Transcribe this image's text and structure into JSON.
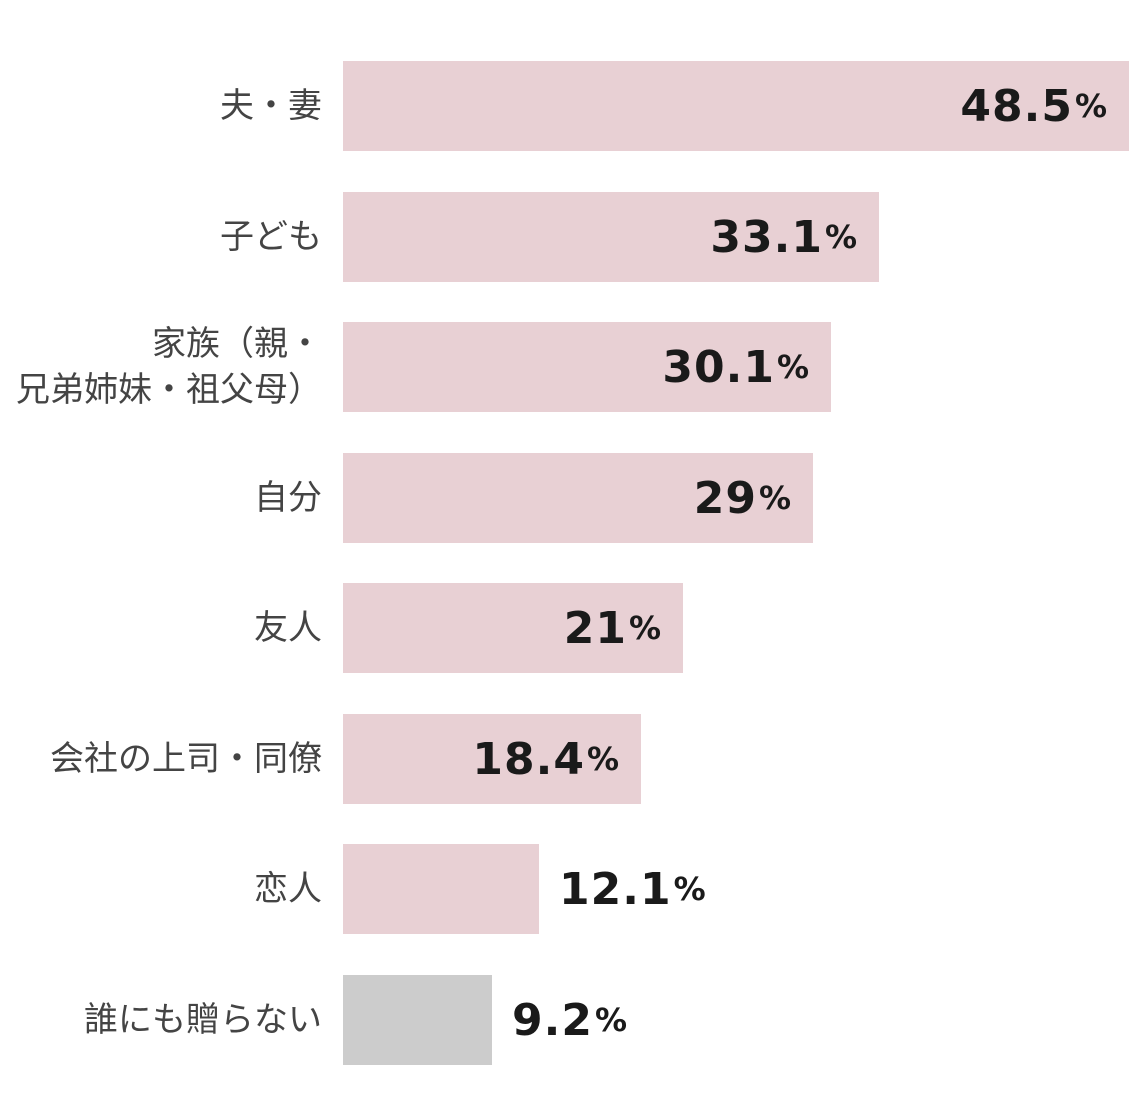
{
  "chart_data": {
    "type": "bar",
    "orientation": "horizontal",
    "categories": [
      "夫・妻",
      "子ども",
      "家族（親・\n兄弟姉妹・祖父母）",
      "自分",
      "友人",
      "会社の上司・同僚",
      "恋人",
      "誰にも贈らない"
    ],
    "values": [
      48.5,
      33.1,
      30.1,
      29,
      21,
      18.4,
      12.1,
      9.2
    ],
    "value_labels": [
      "48.5",
      "33.1",
      "30.1",
      "29",
      "21",
      "18.4",
      "12.1",
      "9.2"
    ],
    "unit": "%",
    "xlim": [
      0,
      48.5
    ],
    "grid": false,
    "legend": "none",
    "colors": {
      "bar": "#e8d0d4",
      "highlight_bar": "#cccccc",
      "label_text": "#444444",
      "value_text": "#1a1a1a"
    }
  }
}
